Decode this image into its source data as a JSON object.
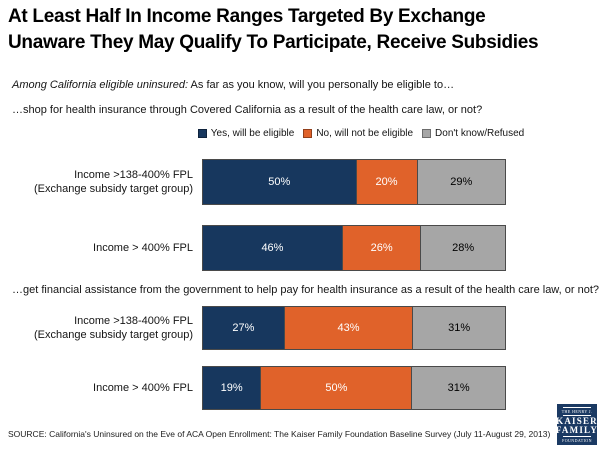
{
  "title": {
    "line1": "At Least Half In Income Ranges Targeted By Exchange",
    "line2": "Unaware They May Qualify To Participate, Receive Subsidies"
  },
  "subtitle": {
    "italic": "Among California eligible uninsured:",
    "rest": " As far as you know, will you personally be eligible to…"
  },
  "legend": [
    {
      "label": "Yes, will be eligible",
      "color": "#17375E",
      "value_text_color": "#ffffff"
    },
    {
      "label": "No, will not be eligible",
      "color": "#E0622A",
      "value_text_color": "#ffffff"
    },
    {
      "label": "Don't know/Refused",
      "color": "#A6A6A6",
      "value_text_color": "#000000"
    }
  ],
  "sections": [
    {
      "question": "…shop for health insurance through Covered California as a result of the health care law, or not?",
      "rows": [
        {
          "label_line1": "Income >138-400% FPL",
          "label_line2": "(Exchange subsidy target group)",
          "values": [
            50,
            20,
            29
          ]
        },
        {
          "label_line1": "Income > 400% FPL",
          "label_line2": "",
          "values": [
            46,
            26,
            28
          ]
        }
      ]
    },
    {
      "question": "…get financial assistance from the government to help pay for health insurance as a result of the health care law, or not?",
      "rows": [
        {
          "label_line1": "Income >138-400% FPL",
          "label_line2": "(Exchange subsidy target group)",
          "values": [
            27,
            43,
            31
          ]
        },
        {
          "label_line1": "Income > 400% FPL",
          "label_line2": "",
          "values": [
            19,
            50,
            31
          ]
        }
      ]
    }
  ],
  "source": "SOURCE: California's Uninsured on the Eve of ACA Open Enrollment: The Kaiser Family Foundation Baseline Survey (July 11-August 29, 2013)",
  "logo": {
    "top": "THE HENRY J.",
    "name1": "KAISER",
    "name2": "FAMILY",
    "bottom": "FOUNDATION"
  },
  "chart_data": {
    "type": "bar",
    "variant": "horizontal_stacked_100",
    "unit": "percent",
    "title": "At Least Half In Income Ranges Targeted By Exchange Unaware They May Qualify To Participate, Receive Subsidies",
    "subtitle": "Among California eligible uninsured: As far as you know, will you personally be eligible to…",
    "legend_position": "top",
    "series_names": [
      "Yes, will be eligible",
      "No, will not be eligible",
      "Don't know/Refused"
    ],
    "series_colors": [
      "#17375E",
      "#E0622A",
      "#A6A6A6"
    ],
    "groups": [
      {
        "question": "…shop for health insurance through Covered California as a result of the health care law, or not?",
        "categories": [
          "Income >138-400% FPL (Exchange subsidy target group)",
          "Income > 400% FPL"
        ],
        "series": [
          {
            "name": "Yes, will be eligible",
            "values": [
              50,
              46
            ]
          },
          {
            "name": "No, will not be eligible",
            "values": [
              20,
              26
            ]
          },
          {
            "name": "Don't know/Refused",
            "values": [
              29,
              28
            ]
          }
        ]
      },
      {
        "question": "…get financial assistance from the government to help pay for health insurance as a result of the health care law, or not?",
        "categories": [
          "Income >138-400% FPL (Exchange subsidy target group)",
          "Income > 400% FPL"
        ],
        "series": [
          {
            "name": "Yes, will be eligible",
            "values": [
              27,
              19
            ]
          },
          {
            "name": "No, will not be eligible",
            "values": [
              43,
              50
            ]
          },
          {
            "name": "Don't know/Refused",
            "values": [
              31,
              31
            ]
          }
        ]
      }
    ],
    "source": "SOURCE: California's Uninsured on the Eve of ACA Open Enrollment: The Kaiser Family Foundation Baseline Survey (July 11-August 29, 2013)"
  }
}
